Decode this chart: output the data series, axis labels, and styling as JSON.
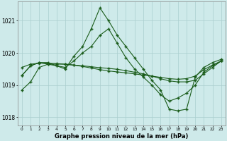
{
  "background_color": "#ceeaea",
  "grid_color": "#aacece",
  "line_color": "#1a5c1a",
  "title": "Graphe pression niveau de la mer (hPa)",
  "ylim": [
    1017.75,
    1021.6
  ],
  "xlim": [
    -0.5,
    23.5
  ],
  "yticks": [
    1018,
    1019,
    1020,
    1021
  ],
  "xticks": [
    0,
    1,
    2,
    3,
    4,
    5,
    6,
    7,
    8,
    9,
    10,
    11,
    12,
    13,
    14,
    15,
    16,
    17,
    18,
    19,
    20,
    21,
    22,
    23
  ],
  "line1": [
    1019.3,
    1019.6,
    1019.7,
    1019.7,
    1019.6,
    1019.5,
    1019.9,
    1020.2,
    1020.75,
    1021.4,
    1021.0,
    1020.55,
    1020.2,
    1019.85,
    1019.5,
    1019.15,
    1018.85,
    1018.25,
    1018.2,
    1018.25,
    1019.25,
    1019.55,
    1019.7,
    1019.8
  ],
  "line2": [
    1019.3,
    1019.6,
    1019.7,
    1019.65,
    1019.6,
    1019.55,
    1019.75,
    1020.0,
    1020.2,
    1020.55,
    1020.75,
    1020.3,
    1019.85,
    1019.5,
    1019.25,
    1019.0,
    1018.7,
    1018.5,
    1018.6,
    1018.75,
    1019.0,
    1019.4,
    1019.6,
    1019.75
  ],
  "line3": [
    1019.55,
    1019.65,
    1019.68,
    1019.68,
    1019.67,
    1019.65,
    1019.62,
    1019.6,
    1019.57,
    1019.54,
    1019.52,
    1019.49,
    1019.45,
    1019.4,
    1019.35,
    1019.28,
    1019.2,
    1019.13,
    1019.1,
    1019.1,
    1019.15,
    1019.35,
    1019.55,
    1019.75
  ],
  "line4": [
    1018.85,
    1019.1,
    1019.55,
    1019.65,
    1019.65,
    1019.65,
    1019.62,
    1019.58,
    1019.53,
    1019.48,
    1019.44,
    1019.41,
    1019.38,
    1019.35,
    1019.31,
    1019.28,
    1019.24,
    1019.2,
    1019.18,
    1019.2,
    1019.28,
    1019.48,
    1019.62,
    1019.75
  ]
}
